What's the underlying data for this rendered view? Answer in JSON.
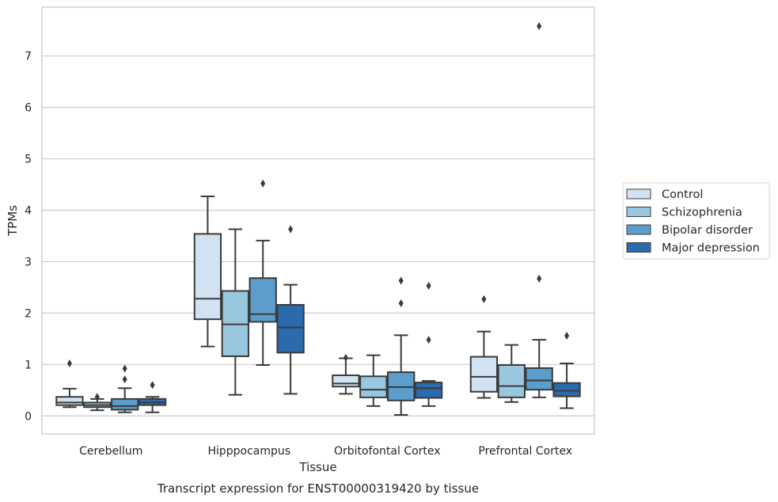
{
  "chart_data": {
    "type": "box",
    "caption": "Transcript expression for ENST00000319420 by tissue",
    "xlabel": "Tissue",
    "ylabel": "TPMs",
    "ylim": [
      -0.35,
      7.95
    ],
    "yticks": [
      0,
      1,
      2,
      3,
      4,
      5,
      6,
      7
    ],
    "grid": true,
    "legend_position": "right",
    "categories": [
      "Cerebellum",
      "Hipppocampus",
      "Orbitofontal Cortex",
      "Prefrontal Cortex"
    ],
    "series": [
      {
        "name": "Control",
        "color": "#d1e2f2",
        "boxes": [
          {
            "whislo": 0.17,
            "q1": 0.21,
            "med": 0.26,
            "q3": 0.37,
            "whishi": 0.53,
            "fliers": [
              1.02
            ]
          },
          {
            "whislo": 1.35,
            "q1": 1.88,
            "med": 2.28,
            "q3": 3.54,
            "whishi": 4.27,
            "fliers": []
          },
          {
            "whislo": 0.43,
            "q1": 0.57,
            "med": 0.63,
            "q3": 0.79,
            "whishi": 1.12,
            "fliers": [
              1.13
            ]
          },
          {
            "whislo": 0.35,
            "q1": 0.47,
            "med": 0.76,
            "q3": 1.15,
            "whishi": 1.64,
            "fliers": [
              2.27
            ]
          }
        ]
      },
      {
        "name": "Schizophrenia",
        "color": "#9ac7e0",
        "boxes": [
          {
            "whislo": 0.11,
            "q1": 0.17,
            "med": 0.21,
            "q3": 0.26,
            "whishi": 0.33,
            "fliers": [
              0.37
            ]
          },
          {
            "whislo": 0.41,
            "q1": 1.16,
            "med": 1.78,
            "q3": 2.43,
            "whishi": 3.63,
            "fliers": []
          },
          {
            "whislo": 0.19,
            "q1": 0.36,
            "med": 0.51,
            "q3": 0.77,
            "whishi": 1.18,
            "fliers": []
          },
          {
            "whislo": 0.27,
            "q1": 0.36,
            "med": 0.58,
            "q3": 0.99,
            "whishi": 1.38,
            "fliers": []
          }
        ]
      },
      {
        "name": "Bipolar disorder",
        "color": "#5b9ecb",
        "boxes": [
          {
            "whislo": 0.07,
            "q1": 0.12,
            "med": 0.19,
            "q3": 0.33,
            "whishi": 0.54,
            "fliers": [
              0.71,
              0.92
            ]
          },
          {
            "whislo": 0.99,
            "q1": 1.83,
            "med": 1.98,
            "q3": 2.68,
            "whishi": 3.41,
            "fliers": [
              4.52
            ]
          },
          {
            "whislo": 0.02,
            "q1": 0.3,
            "med": 0.56,
            "q3": 0.85,
            "whishi": 1.57,
            "fliers": [
              2.19,
              2.63
            ]
          },
          {
            "whislo": 0.36,
            "q1": 0.51,
            "med": 0.69,
            "q3": 0.93,
            "whishi": 1.48,
            "fliers": [
              2.67,
              7.58
            ]
          }
        ]
      },
      {
        "name": "Major depression",
        "color": "#2b6aad",
        "boxes": [
          {
            "whislo": 0.07,
            "q1": 0.21,
            "med": 0.26,
            "q3": 0.33,
            "whishi": 0.37,
            "fliers": [
              0.6
            ]
          },
          {
            "whislo": 0.43,
            "q1": 1.23,
            "med": 1.72,
            "q3": 2.16,
            "whishi": 2.55,
            "fliers": [
              3.63
            ]
          },
          {
            "whislo": 0.19,
            "q1": 0.35,
            "med": 0.54,
            "q3": 0.65,
            "whishi": 0.68,
            "fliers": [
              1.48,
              2.53
            ]
          },
          {
            "whislo": 0.15,
            "q1": 0.38,
            "med": 0.49,
            "q3": 0.64,
            "whishi": 1.02,
            "fliers": [
              1.56
            ]
          }
        ]
      }
    ]
  }
}
